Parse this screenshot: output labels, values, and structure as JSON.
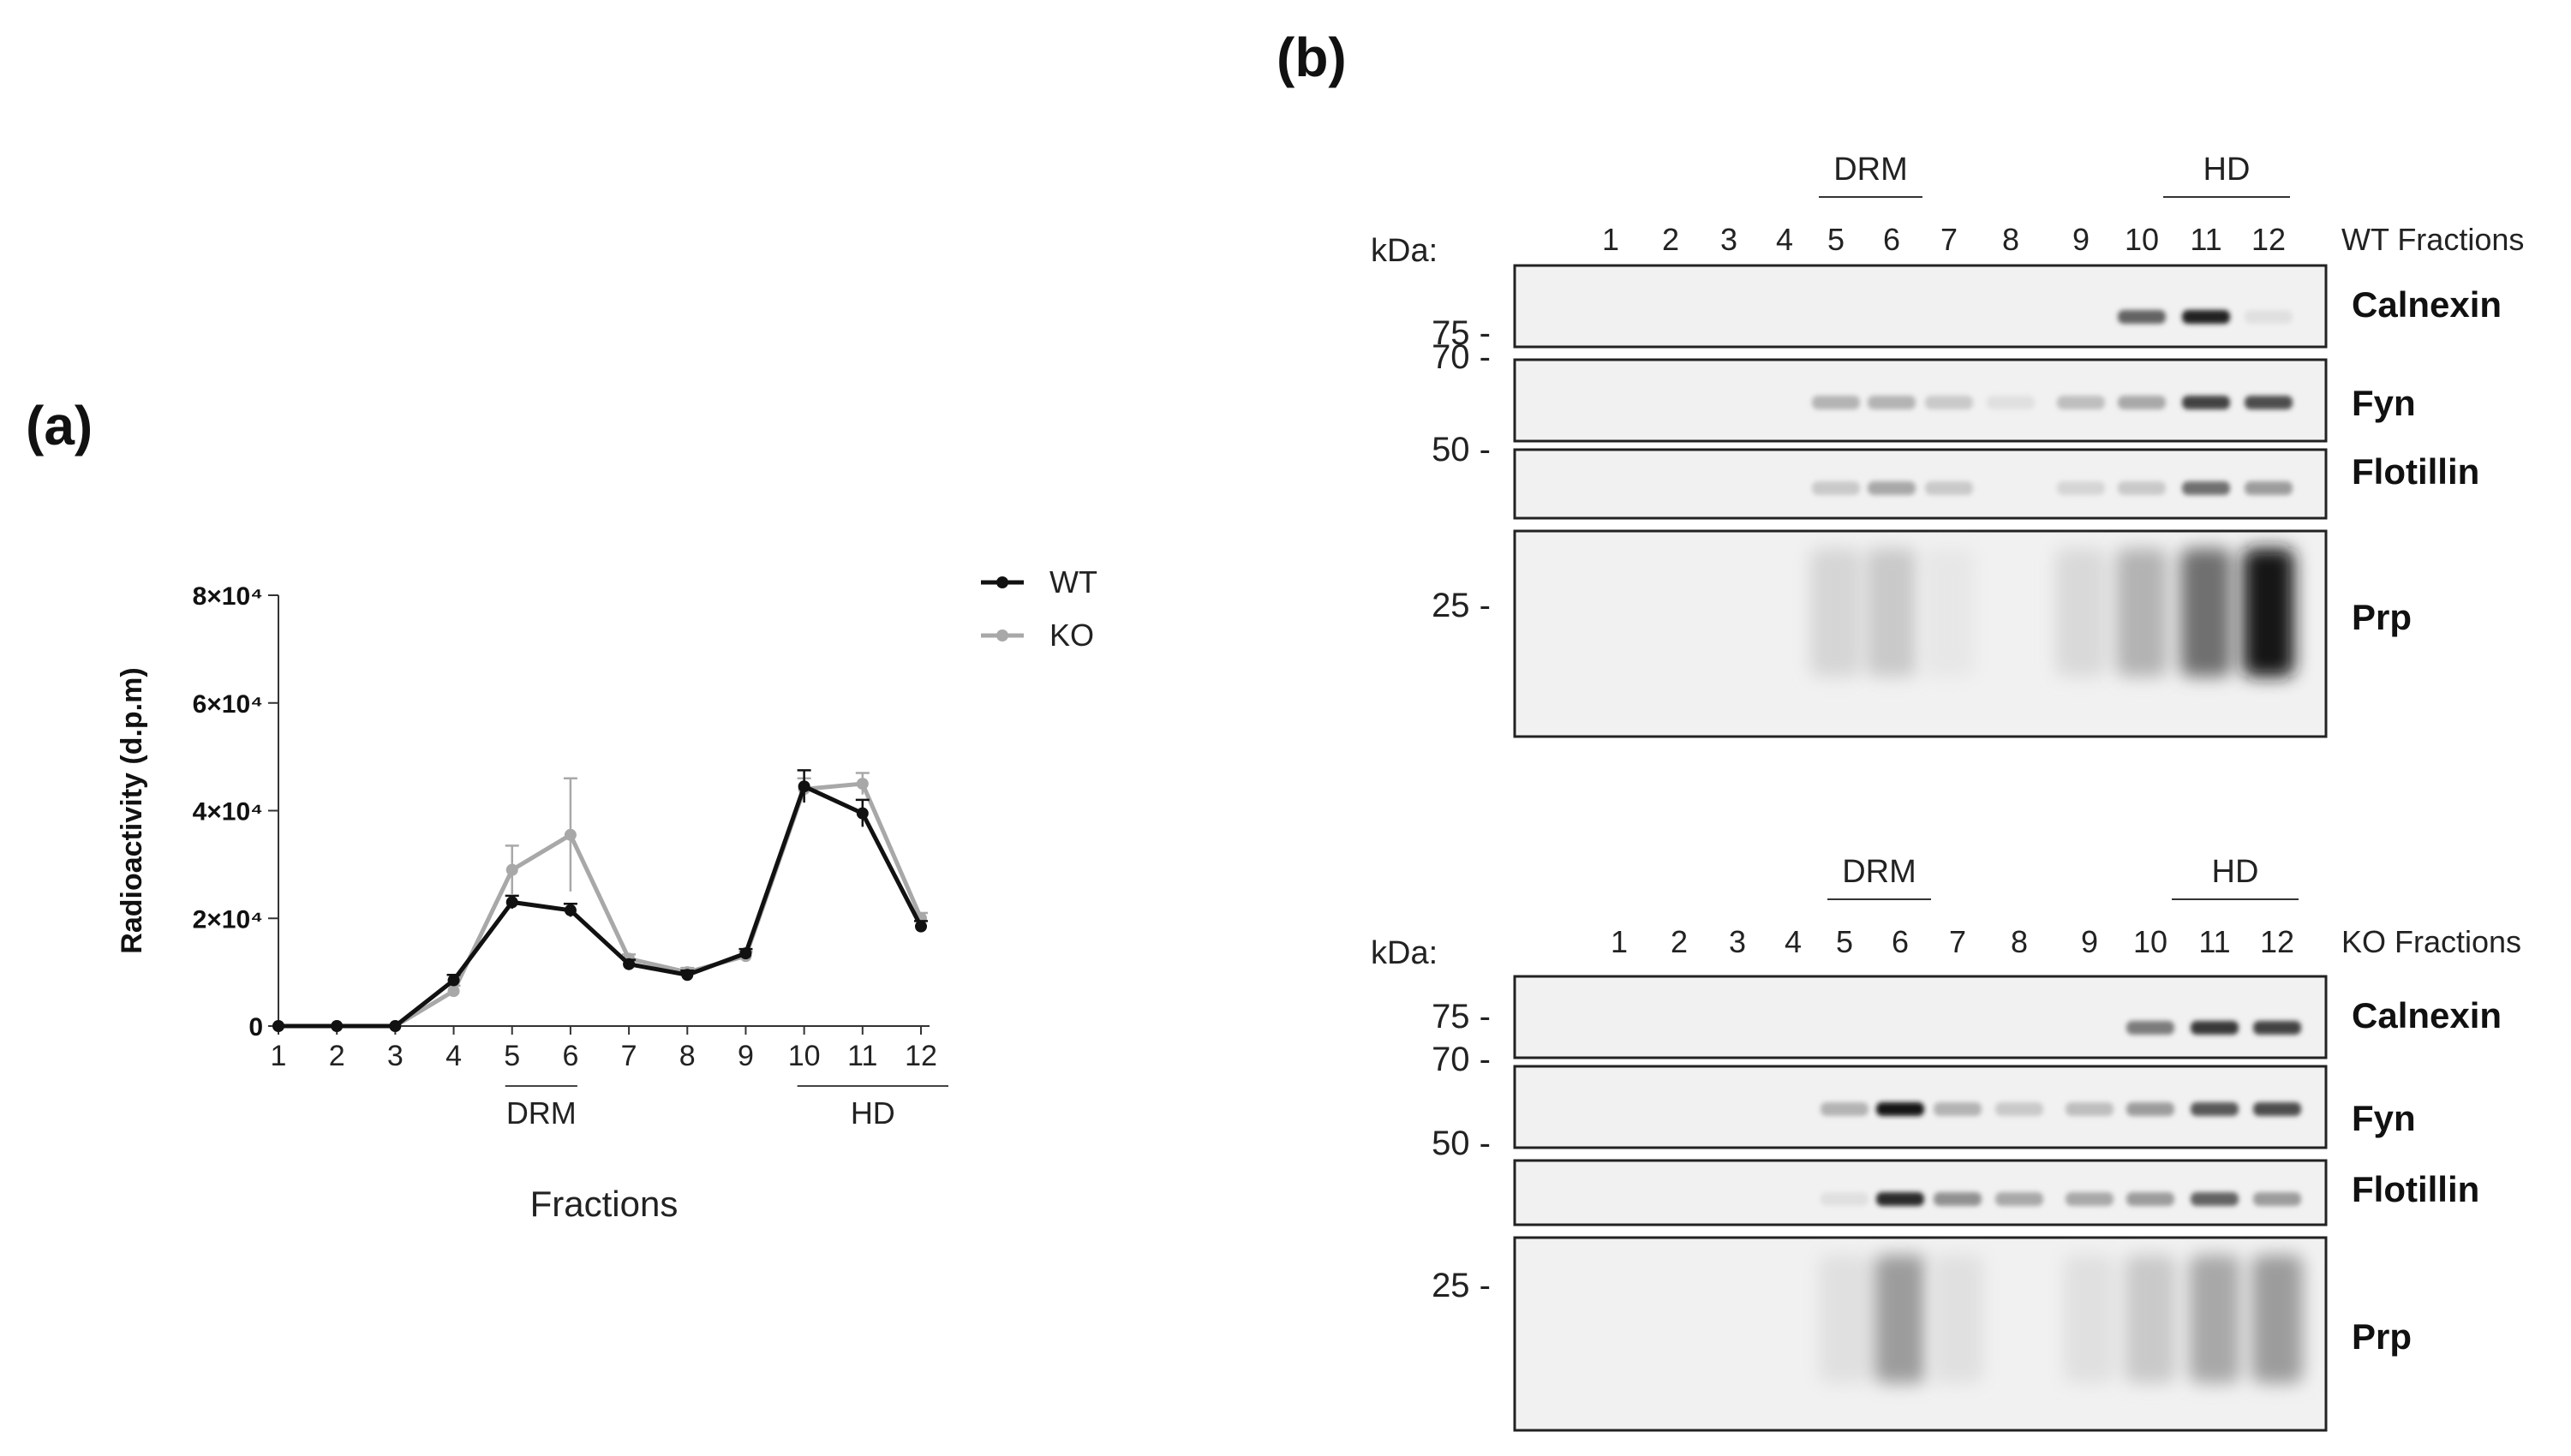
{
  "panel_a_label": "(a)",
  "panel_b_label": "(b)",
  "chart_data": {
    "type": "line",
    "x": [
      1,
      2,
      3,
      4,
      5,
      6,
      7,
      8,
      9,
      10,
      11,
      12
    ],
    "categories": [
      "1",
      "2",
      "3",
      "4",
      "5",
      "6",
      "7",
      "8",
      "9",
      "10",
      "11",
      "12"
    ],
    "series": [
      {
        "name": "WT",
        "color": "#111111",
        "values": [
          0,
          0,
          0,
          8500,
          23000,
          21500,
          11500,
          9500,
          13500,
          44500,
          39500,
          18500
        ],
        "error": [
          0,
          0,
          0,
          1000,
          1200,
          1200,
          800,
          800,
          800,
          3000,
          2500,
          1000
        ]
      },
      {
        "name": "KO",
        "color": "#a8a8a8",
        "values": [
          0,
          0,
          0,
          6500,
          29000,
          35500,
          12500,
          10000,
          13000,
          44000,
          45000,
          20000
        ],
        "error": [
          0,
          0,
          0,
          1000,
          4500,
          10500,
          800,
          800,
          800,
          2000,
          2000,
          1000
        ]
      }
    ],
    "ylabel": "Radioactivity (d.p.m)",
    "xlabel": "Fractions",
    "ylim": [
      0,
      80000
    ],
    "y_ticks": [
      {
        "value": 0,
        "label": "0"
      },
      {
        "value": 20000,
        "label": "2×10⁴"
      },
      {
        "value": 40000,
        "label": "4×10⁴"
      },
      {
        "value": 60000,
        "label": "6×10⁴"
      },
      {
        "value": 80000,
        "label": "8×10⁴"
      }
    ],
    "brackets": [
      {
        "label": "DRM",
        "from": 5,
        "to": 6
      },
      {
        "label": "HD",
        "from": 10,
        "to": 12
      }
    ],
    "legend_position": "right",
    "grid": false
  },
  "blots": [
    {
      "id": "wt",
      "kda_label": "kDa:",
      "fractions_label": "WT Fractions",
      "lanes": [
        "1",
        "2",
        "3",
        "4",
        "5",
        "6",
        "7",
        "8",
        "9",
        "10",
        "11",
        "12"
      ],
      "brackets": [
        {
          "label": "DRM"
        },
        {
          "label": "HD"
        }
      ],
      "rows": [
        {
          "protein": "Calnexin",
          "marker": "75 -"
        },
        {
          "protein": "Fyn",
          "marker": "70 -"
        },
        {
          "protein": "Flotillin",
          "marker": "50 -"
        },
        {
          "protein": "Prp",
          "marker": "25 -"
        }
      ],
      "band_intensity": {
        "Calnexin": [
          0,
          0,
          0,
          0,
          0,
          0,
          0,
          0,
          0,
          0.6,
          0.9,
          0.05
        ],
        "Fyn": [
          0,
          0,
          0,
          0,
          0.25,
          0.25,
          0.15,
          0.05,
          0.2,
          0.3,
          0.75,
          0.7
        ],
        "Flotillin": [
          0,
          0,
          0,
          0,
          0.15,
          0.3,
          0.15,
          0,
          0.1,
          0.15,
          0.55,
          0.35
        ],
        "Prp": [
          0,
          0,
          0,
          0,
          0.1,
          0.15,
          0.02,
          0,
          0.08,
          0.25,
          0.55,
          0.95
        ]
      }
    },
    {
      "id": "ko",
      "kda_label": "kDa:",
      "fractions_label": "KO Fractions",
      "lanes": [
        "1",
        "2",
        "3",
        "4",
        "5",
        "6",
        "7",
        "8",
        "9",
        "10",
        "11",
        "12"
      ],
      "brackets": [
        {
          "label": "DRM"
        },
        {
          "label": "HD"
        }
      ],
      "rows": [
        {
          "protein": "Calnexin",
          "marker": "75 -"
        },
        {
          "protein": "Fyn",
          "marker": "70 -"
        },
        {
          "protein": "Flotillin",
          "marker": "50 -"
        },
        {
          "protein": "Prp",
          "marker": "25 -"
        }
      ],
      "band_intensity": {
        "Calnexin": [
          0,
          0,
          0,
          0,
          0,
          0,
          0,
          0,
          0,
          0.5,
          0.8,
          0.75
        ],
        "Fyn": [
          0,
          0,
          0,
          0,
          0.25,
          0.95,
          0.25,
          0.15,
          0.2,
          0.35,
          0.65,
          0.7
        ],
        "Flotillin": [
          0,
          0,
          0,
          0,
          0.05,
          0.85,
          0.4,
          0.3,
          0.3,
          0.35,
          0.6,
          0.35
        ],
        "Prp": [
          0,
          0,
          0,
          0,
          0.05,
          0.35,
          0.05,
          0,
          0.05,
          0.15,
          0.3,
          0.35
        ]
      }
    }
  ]
}
